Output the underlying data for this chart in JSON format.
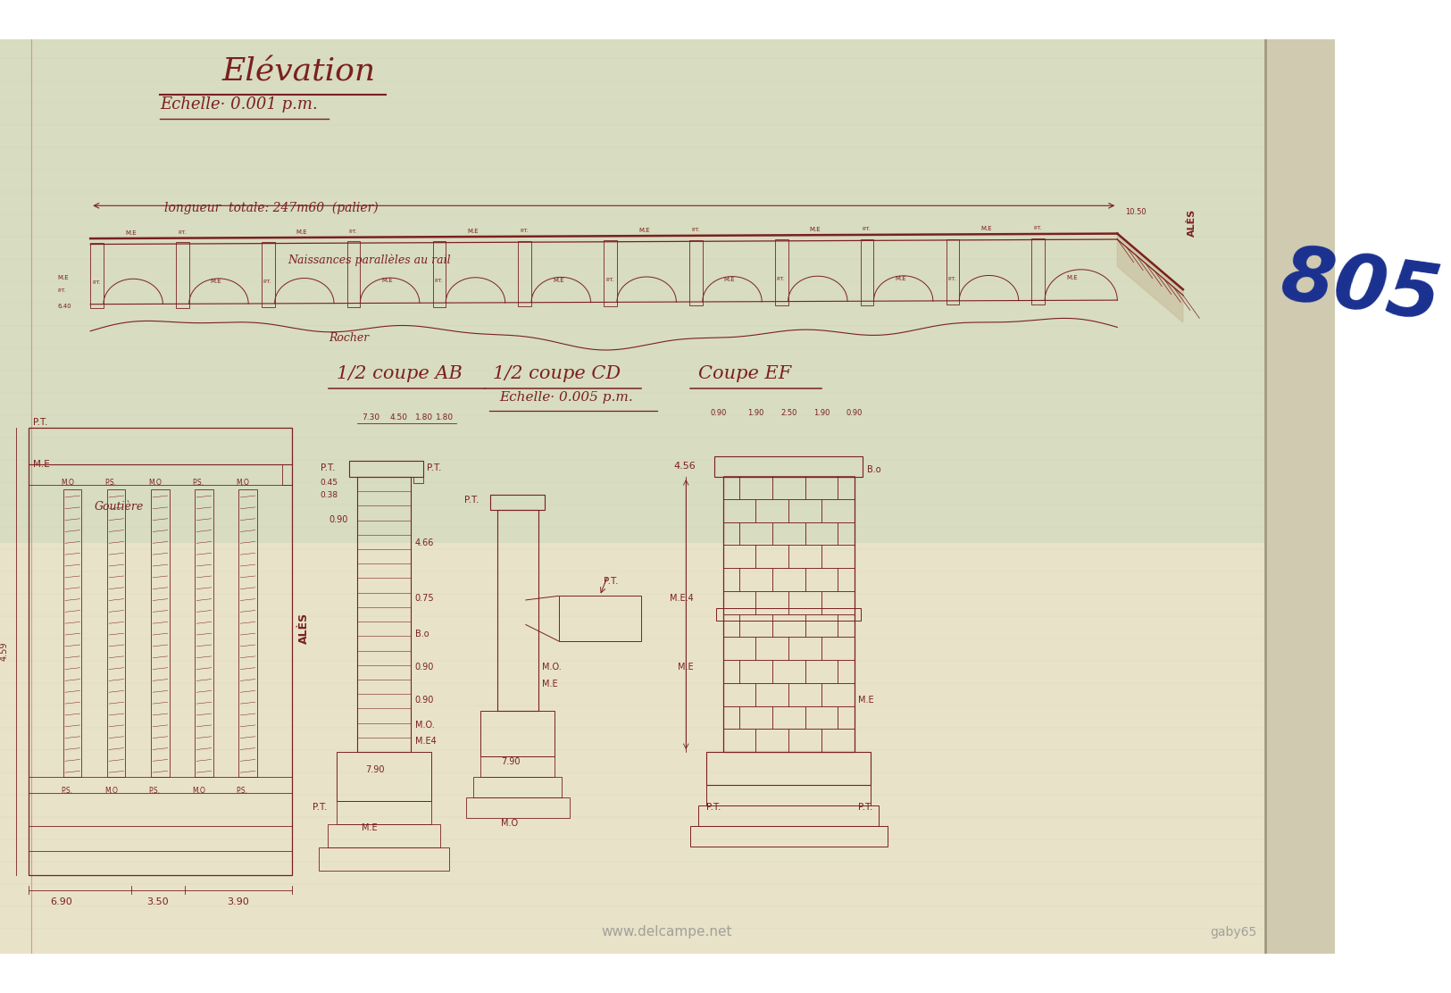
{
  "bg_color": "#e8e2c8",
  "bg_top": "#d8dcc0",
  "drawing_color": "#7a2020",
  "title1": "Elévation",
  "title2": "Echelle· 0.001 p.m.",
  "subtitle_viaduct": "longueur  totale: 247m60  (palier)",
  "label_naissances": "Naissances parallèles au rail",
  "label_rocher": "Rocher",
  "label_ales_right": "ALÈS",
  "label_ales_left": "ALÈS",
  "section_title_ab": "1/2 coupe AB",
  "section_title_cd": "1/2 coupe CD",
  "section_title_ef": "Coupe EF",
  "echelle_section": "Echelle· 0.005 p.m.",
  "blue_number": "805",
  "website": "www.delcampe.net",
  "author": "gaby65",
  "num_arches": 12,
  "right_strip_color": "#d0cbb0",
  "shadow_color": "#c0bba0"
}
